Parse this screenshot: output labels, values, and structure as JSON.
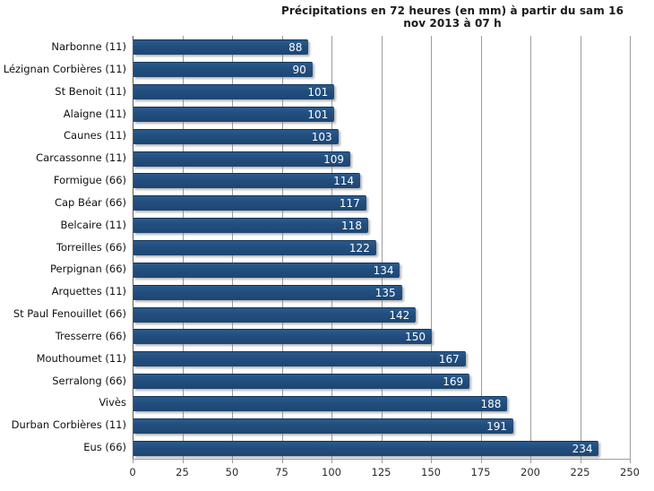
{
  "chart_data": {
    "type": "bar",
    "orientation": "horizontal",
    "title": "Précipitations  en 72 heures (en mm) à partir du sam 16 nov 2013 à 07 h",
    "categories": [
      "Narbonne (11)",
      "Lézignan Corbières (11)",
      "St Benoit (11)",
      "Alaigne (11)",
      "Caunes (11)",
      "Carcassonne (11)",
      "Formigue (66)",
      "Cap Béar (66)",
      "Belcaire (11)",
      "Torreilles (66)",
      "Perpignan (66)",
      "Arquettes (11)",
      "St Paul Fenouillet (66)",
      "Tresserre (66)",
      "Mouthoumet (11)",
      "Serralong (66)",
      "Vivès",
      "Durban Corbières (11)",
      "Eus (66)"
    ],
    "values": [
      88,
      90,
      101,
      101,
      103,
      109,
      114,
      117,
      118,
      122,
      134,
      135,
      142,
      150,
      167,
      169,
      188,
      191,
      234
    ],
    "xlabel": "",
    "ylabel": "",
    "xlim": [
      0,
      250
    ],
    "xticks": [
      0,
      25,
      50,
      75,
      100,
      125,
      150,
      175,
      200,
      225,
      250
    ],
    "grid": "vertical-gridlines-on",
    "legend": "none",
    "value_labels": "inside-end-white",
    "colors": {
      "bar": "#1f4d7d",
      "gridline": "#9d9d9d",
      "axis": "#5a5a5a",
      "value_label": "#ffffff",
      "text": "#111111"
    }
  }
}
